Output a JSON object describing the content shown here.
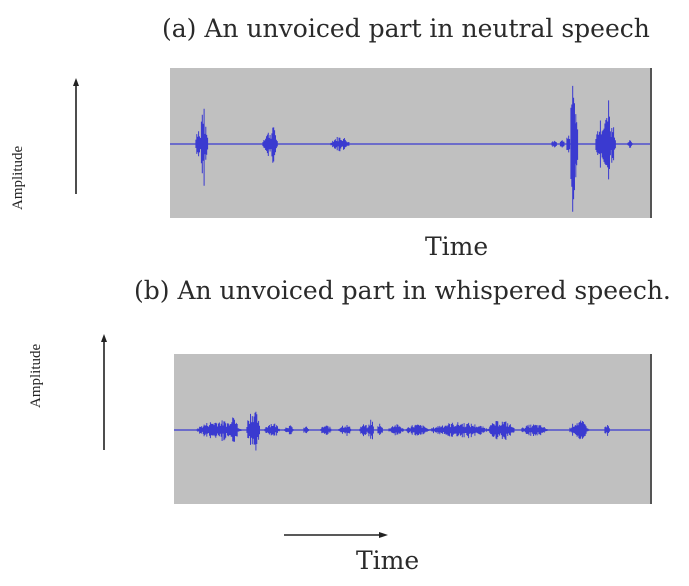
{
  "panel_a": {
    "caption": "(a) An unvoiced part in neutral speech",
    "ylabel": "Amplitude",
    "xlabel": "Time"
  },
  "panel_b": {
    "caption": "(b)  An unvoiced part in whispered speech.",
    "ylabel": "Amplitude",
    "xlabel": "Time"
  },
  "colors": {
    "panel_background": "#c0c0c0",
    "waveform": "#3a3ad0",
    "axis": "#222222"
  }
}
